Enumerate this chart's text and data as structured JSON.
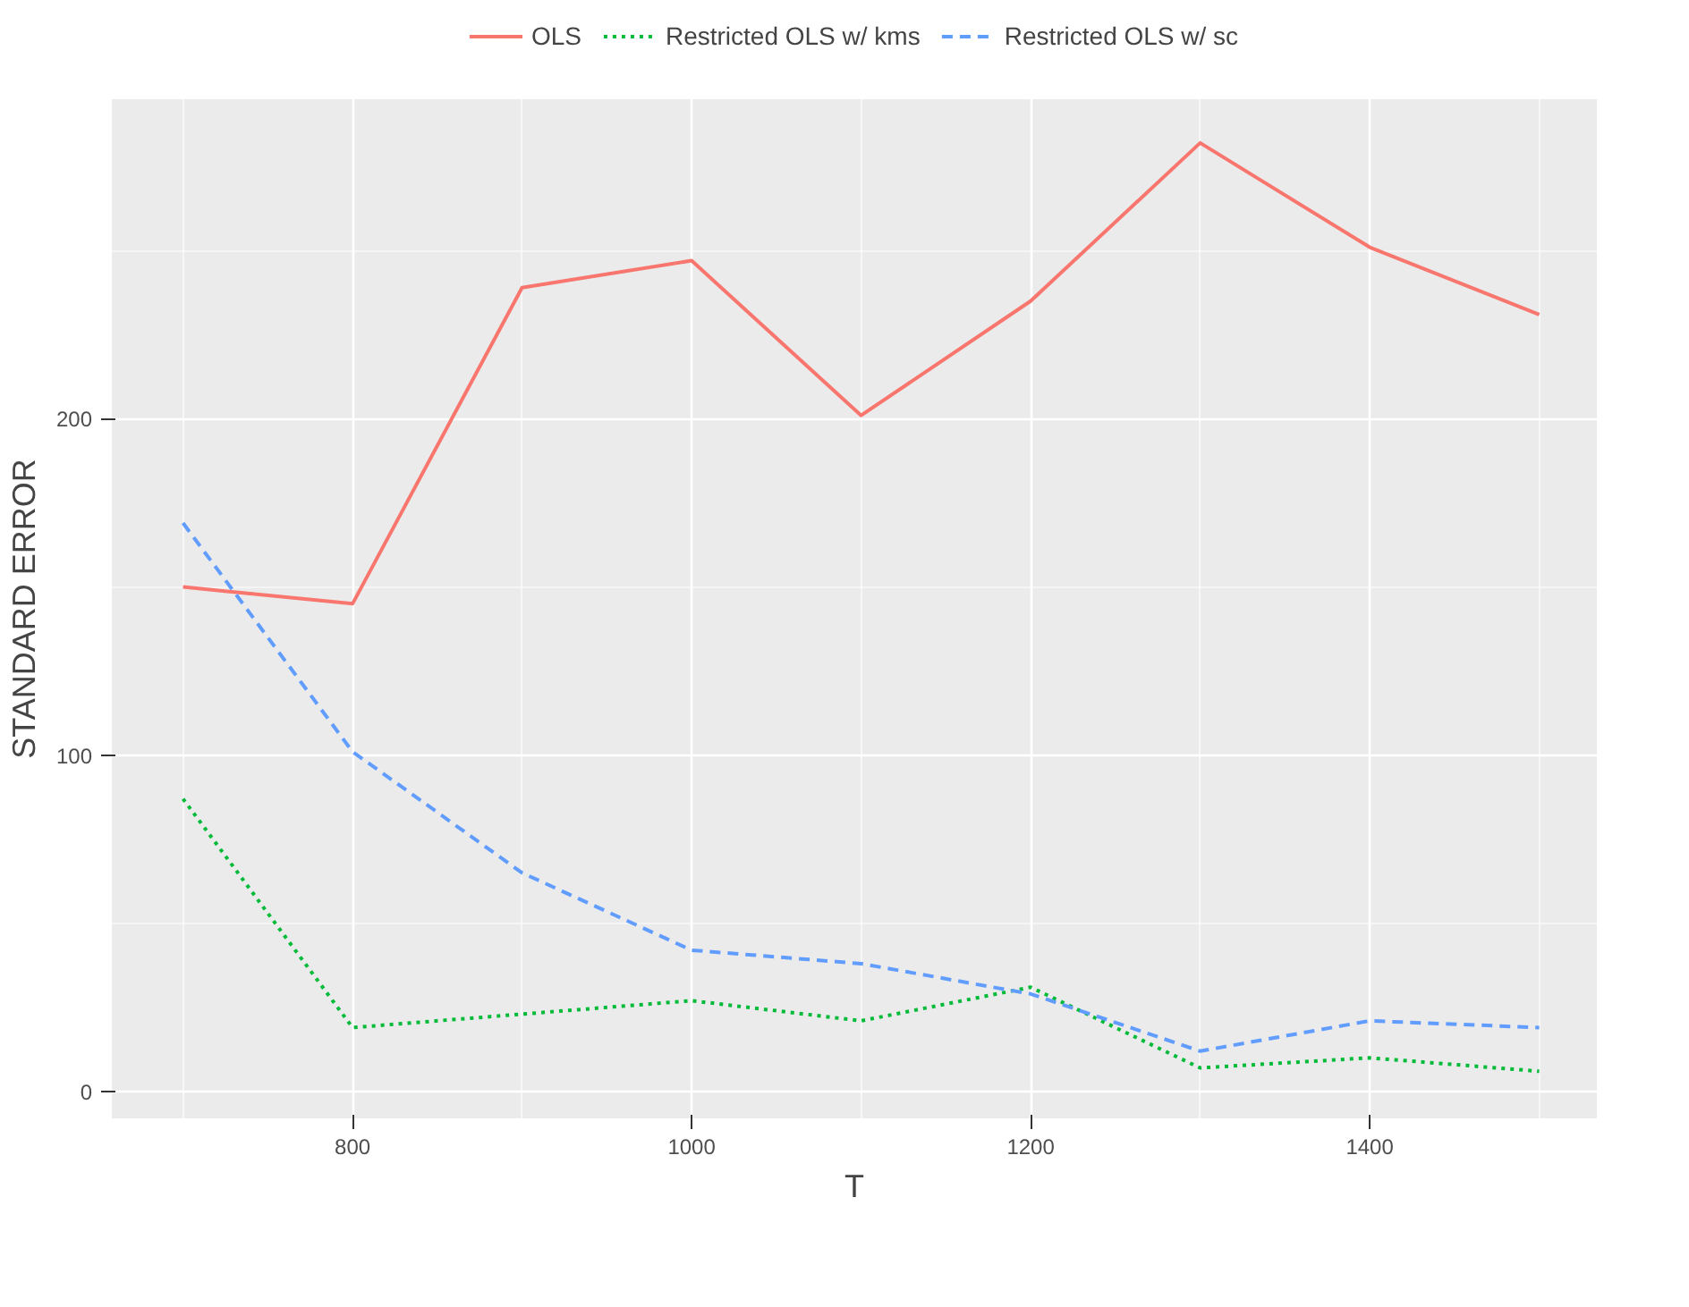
{
  "chart_data": {
    "type": "line",
    "xlabel": "T",
    "ylabel": "STANDARD ERROR",
    "x": [
      700,
      800,
      900,
      1000,
      1100,
      1200,
      1300,
      1400,
      1500
    ],
    "series": [
      {
        "name": "OLS",
        "color": "#f8766d",
        "line_style": "solid",
        "values": [
          150,
          145,
          239,
          247,
          201,
          235,
          282,
          251,
          231
        ]
      },
      {
        "name": "Restricted OLS w/ kms",
        "color": "#00ba38",
        "line_style": "dotted",
        "values": [
          87,
          19,
          23,
          27,
          21,
          31,
          7,
          10,
          6
        ]
      },
      {
        "name": "Restricted OLS w/ sc",
        "color": "#619cff",
        "line_style": "dashed",
        "values": [
          169,
          101,
          65,
          42,
          38,
          29,
          12,
          21,
          19
        ]
      }
    ],
    "xlim": [
      658,
      1534
    ],
    "ylim": [
      -8,
      295
    ],
    "xticks": [
      {
        "value": 700,
        "label": null
      },
      800,
      {
        "value": 900,
        "label": null
      },
      1000,
      {
        "value": 1100,
        "label": null
      },
      1200,
      {
        "value": 1300,
        "label": null
      },
      1400,
      {
        "value": 1500,
        "label": null
      }
    ],
    "yticks": [
      0,
      {
        "value": 50,
        "label": null
      },
      100,
      {
        "value": 150,
        "label": null
      },
      200,
      {
        "value": 250,
        "label": null
      }
    ],
    "grid": true,
    "legend": "top",
    "marker": "none"
  }
}
